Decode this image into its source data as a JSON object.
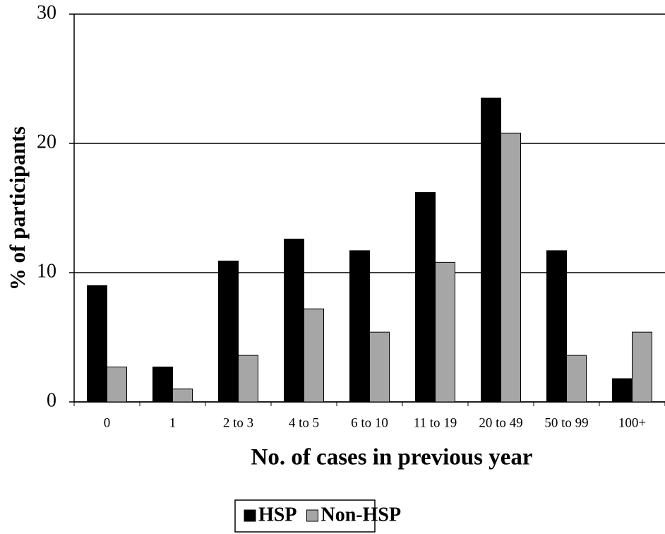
{
  "chart_data": {
    "type": "bar",
    "x_label": "No. of cases in previous year",
    "y_label": "% of participants",
    "categories": [
      "0",
      "1",
      "2 to 3",
      "4 to 5",
      "6 to 10",
      "11 to 19",
      "20 to 49",
      "50 to 99",
      "100+"
    ],
    "series": [
      {
        "name": "HSP",
        "color": "#000000",
        "values": [
          9.0,
          2.7,
          10.9,
          12.6,
          11.7,
          16.2,
          23.5,
          11.7,
          1.8
        ]
      },
      {
        "name": "Non-HSP",
        "color": "#a6a6a6",
        "values": [
          2.7,
          1.0,
          3.6,
          7.2,
          5.4,
          10.8,
          20.8,
          3.6,
          5.4
        ]
      }
    ],
    "ylim": [
      0,
      30
    ],
    "yticks": [
      0,
      10,
      20,
      30
    ],
    "grid": true,
    "legend": "bottom"
  }
}
